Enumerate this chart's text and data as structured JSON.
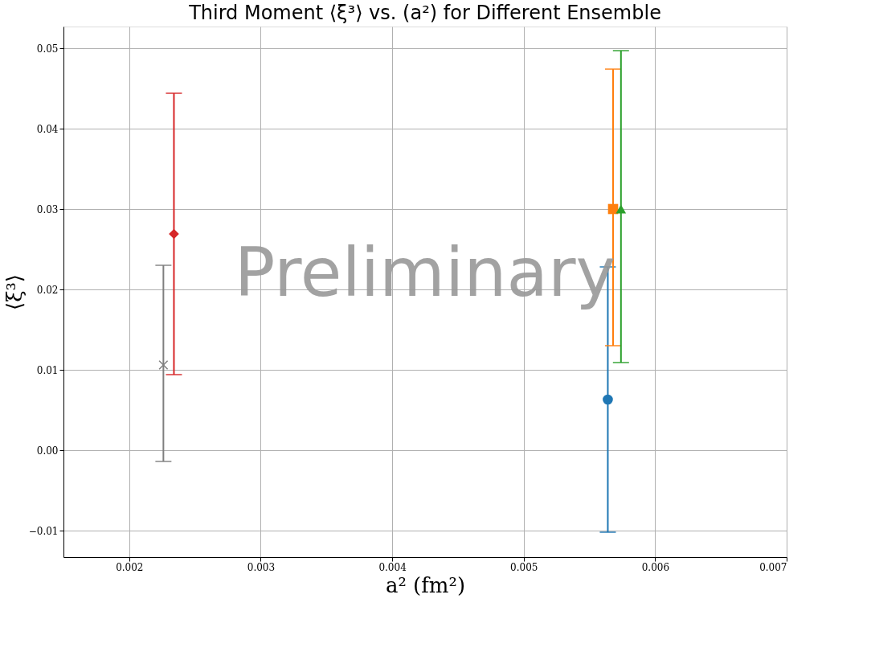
{
  "chart_data": {
    "type": "scatter",
    "title": "Third Moment ⟨ξ³⟩ vs. (a²) for Different Ensemble",
    "xlabel": "a² (fm²)",
    "ylabel": "⟨ξ³⟩",
    "series": [
      {
        "color": "#1f77b4",
        "marker": "circle",
        "x": [
          0.00564
        ],
        "values": [
          0.0063
        ],
        "errors": [
          [
            -0.0102,
            0.0228
          ]
        ]
      },
      {
        "color": "#ff7f0e",
        "marker": "square",
        "x": [
          0.00568
        ],
        "values": [
          0.03
        ],
        "errors": [
          [
            0.013,
            0.0474
          ]
        ]
      },
      {
        "color": "#2ca02c",
        "marker": "triangle",
        "x": [
          0.00574
        ],
        "values": [
          0.03
        ],
        "errors": [
          [
            0.0109,
            0.0497
          ]
        ]
      },
      {
        "color": "#d62728",
        "marker": "diamond",
        "x": [
          0.00234
        ],
        "values": [
          0.0269
        ],
        "errors": [
          [
            0.0094,
            0.0444
          ]
        ]
      },
      {
        "color": "#7f7f7f",
        "marker": "cross",
        "x": [
          0.00226
        ],
        "values": [
          0.0106
        ],
        "errors": [
          [
            -0.0014,
            0.023
          ]
        ]
      }
    ],
    "xlim": [
      0.0015,
      0.007
    ],
    "xticks": [
      0.002,
      0.003,
      0.004,
      0.005,
      0.006,
      0.007
    ],
    "ylim": [
      -0.0133,
      0.0527
    ],
    "yticks": [
      {
        "value": -0.01,
        "label": "−0.01"
      },
      {
        "value": 0,
        "label": "0.00"
      },
      0.01,
      0.02,
      0.03,
      0.04,
      0.05
    ],
    "grid": true,
    "annotations": [
      "Preliminary"
    ]
  }
}
